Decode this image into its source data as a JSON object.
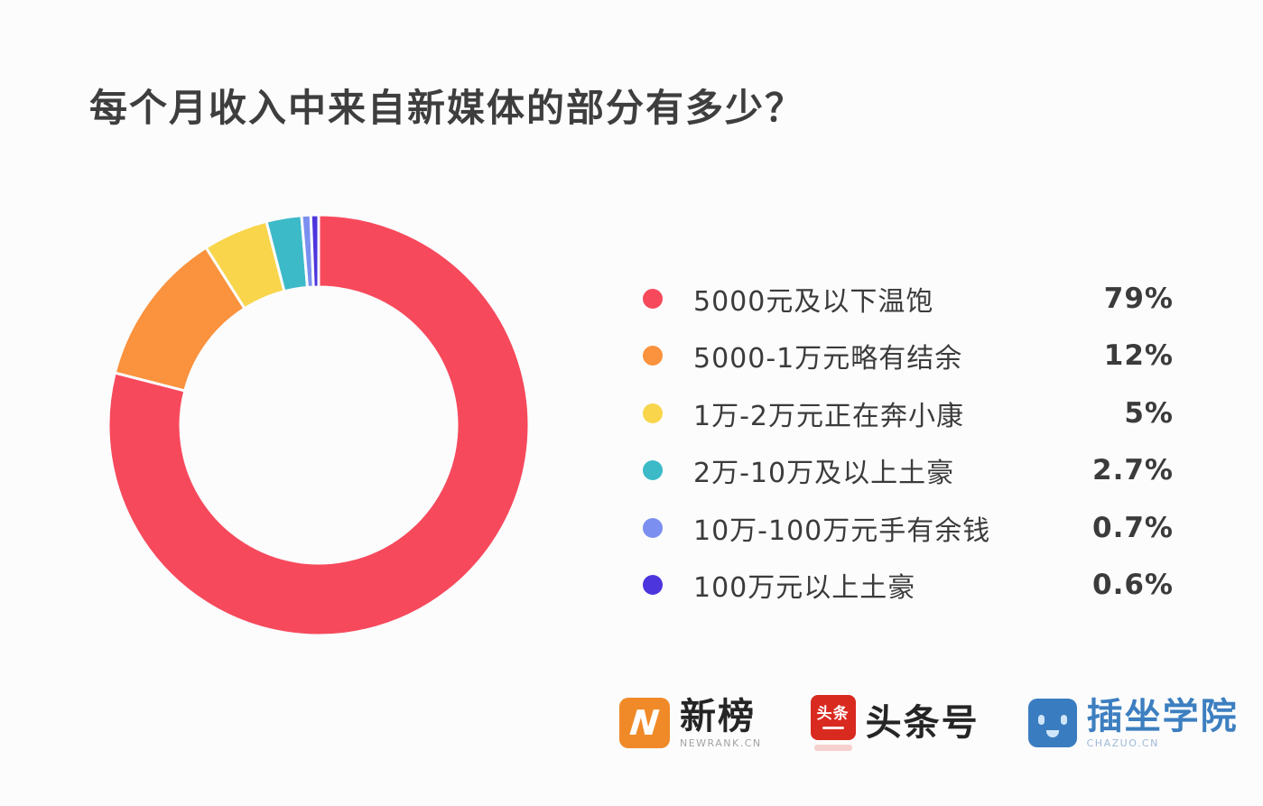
{
  "page": {
    "background_color": "#fcfcfd"
  },
  "chart_data": {
    "type": "pie",
    "subtype": "donut",
    "title": "每个月收入中来自新媒体的部分有多少？",
    "legend_position": "right",
    "start_angle_deg": 0,
    "direction": "clockwise",
    "inner_radius_ratio": 0.65,
    "series": [
      {
        "label": "5000元及以下温饱",
        "value": 79,
        "display": "79%",
        "color": "#f7495c"
      },
      {
        "label": "5000-1万元略有结余",
        "value": 12,
        "display": "12%",
        "color": "#fa923e"
      },
      {
        "label": "1万-2万元正在奔小康",
        "value": 5,
        "display": "5%",
        "color": "#f8d54b"
      },
      {
        "label": "2万-10万及以上土豪",
        "value": 2.7,
        "display": "2.7%",
        "color": "#3cbac8"
      },
      {
        "label": "10万-100万元手有余钱",
        "value": 0.7,
        "display": "0.7%",
        "color": "#7b8ff0"
      },
      {
        "label": "100万元以上土豪",
        "value": 0.6,
        "display": "0.6%",
        "color": "#4c35dd"
      }
    ]
  },
  "footer": {
    "logos": [
      {
        "name": "newrank",
        "icon_text": "N",
        "icon_color": "#f08a28",
        "label": "新榜",
        "sub_label": "NEWRANK.CN"
      },
      {
        "name": "toutiao",
        "icon_text": "头条",
        "icon_color": "#d92a20",
        "label": "头条号"
      },
      {
        "name": "chazuo",
        "icon_color": "#3a7cc0",
        "label": "插坐学院",
        "sub_label": "CHAZUO.CN",
        "text_color": "#3d7fc0"
      }
    ]
  }
}
